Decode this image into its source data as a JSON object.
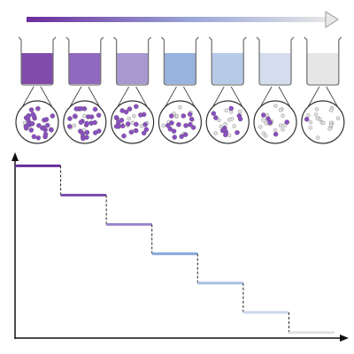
{
  "chart_data": {
    "type": "step",
    "values": [
      94,
      78,
      62,
      46,
      30,
      14,
      3
    ],
    "colors": [
      "#6a2c9c",
      "#7d4fb3",
      "#9a86c8",
      "#86a6d8",
      "#a9bfe3",
      "#cdd7ea",
      "#e2e2e2"
    ],
    "ylim": [
      0,
      100
    ]
  }
}
